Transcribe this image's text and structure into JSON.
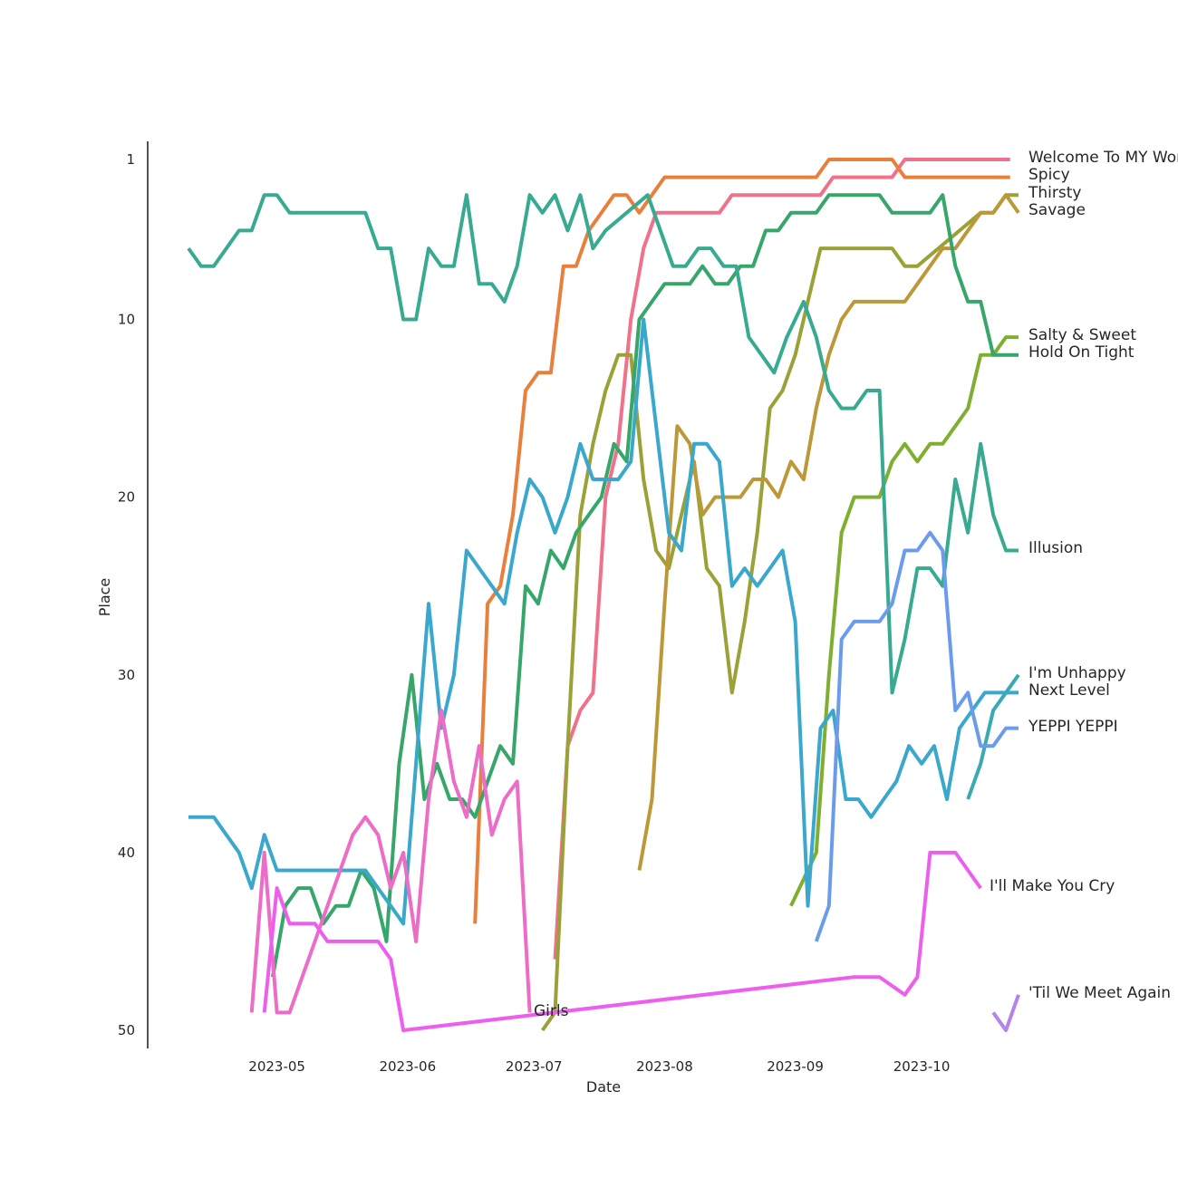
{
  "chart_data": {
    "type": "line",
    "title": "",
    "xlabel": "Date",
    "ylabel": "Place",
    "x_ticks": [
      "2023-05",
      "2023-06",
      "2023-07",
      "2023-08",
      "2023-09",
      "2023-10"
    ],
    "y_ticks": [
      1,
      10,
      20,
      30,
      40,
      50
    ],
    "ylim": [
      51,
      0
    ],
    "xlim": [
      "2023-04-10",
      "2023-10-31"
    ],
    "y_inverted": true,
    "grid": false,
    "legend": "direct labels at line ends",
    "series": [
      {
        "name": "Welcome To MY World",
        "color": "#f0718a",
        "dates": [
          "2023-07-06",
          "2023-07-09",
          "2023-07-12",
          "2023-07-15",
          "2023-07-18",
          "2023-07-21",
          "2023-07-24",
          "2023-07-27",
          "2023-07-30",
          "2023-08-02",
          "2023-08-14",
          "2023-08-17",
          "2023-09-07",
          "2023-09-10",
          "2023-09-24",
          "2023-09-27",
          "2023-10-22"
        ],
        "values": [
          46,
          34,
          32,
          31,
          20,
          17,
          10,
          6,
          4,
          4,
          4,
          3,
          3,
          2,
          2,
          1,
          1
        ]
      },
      {
        "name": "Spicy",
        "color": "#e8803c",
        "dates": [
          "2023-06-17",
          "2023-06-20",
          "2023-06-23",
          "2023-06-26",
          "2023-06-29",
          "2023-07-02",
          "2023-07-05",
          "2023-07-08",
          "2023-07-11",
          "2023-07-14",
          "2023-07-17",
          "2023-07-20",
          "2023-07-23",
          "2023-07-26",
          "2023-07-29",
          "2023-08-01",
          "2023-08-04",
          "2023-08-07",
          "2023-09-06",
          "2023-09-09",
          "2023-09-24",
          "2023-09-27",
          "2023-10-22"
        ],
        "values": [
          44,
          26,
          25,
          21,
          14,
          13,
          13,
          7,
          7,
          5,
          4,
          3,
          3,
          4,
          3,
          2,
          2,
          2,
          2,
          1,
          1,
          2,
          2
        ]
      },
      {
        "name": "Thirsty",
        "color": "#9aa137",
        "dates": [
          "2023-07-03",
          "2023-07-06",
          "2023-07-09",
          "2023-07-12",
          "2023-07-15",
          "2023-07-18",
          "2023-07-21",
          "2023-07-24",
          "2023-07-27",
          "2023-07-30",
          "2023-08-02",
          "2023-08-05",
          "2023-08-08",
          "2023-08-11",
          "2023-08-14",
          "2023-08-17",
          "2023-08-20",
          "2023-08-23",
          "2023-08-26",
          "2023-08-29",
          "2023-09-01",
          "2023-09-04",
          "2023-09-07",
          "2023-09-10",
          "2023-09-24",
          "2023-09-27",
          "2023-09-30",
          "2023-10-15",
          "2023-10-18",
          "2023-10-21",
          "2023-10-24"
        ],
        "values": [
          50,
          49,
          34,
          21,
          17,
          14,
          12,
          12,
          19,
          23,
          24,
          21,
          18,
          24,
          25,
          31,
          27,
          22,
          15,
          14,
          12,
          9,
          6,
          6,
          6,
          7,
          7,
          4,
          4,
          3,
          3
        ]
      },
      {
        "name": "Savage",
        "color": "#bd9838",
        "dates": [
          "2023-07-26",
          "2023-07-29",
          "2023-08-01",
          "2023-08-04",
          "2023-08-07",
          "2023-08-10",
          "2023-08-13",
          "2023-08-16",
          "2023-08-19",
          "2023-08-22",
          "2023-08-25",
          "2023-08-28",
          "2023-08-31",
          "2023-09-03",
          "2023-09-06",
          "2023-09-09",
          "2023-09-12",
          "2023-09-15",
          "2023-09-27",
          "2023-10-06",
          "2023-10-09",
          "2023-10-12",
          "2023-10-15",
          "2023-10-18",
          "2023-10-21",
          "2023-10-24"
        ],
        "values": [
          41,
          37,
          26,
          16,
          17,
          21,
          20,
          20,
          20,
          19,
          19,
          20,
          18,
          19,
          15,
          12,
          10,
          9,
          9,
          6,
          6,
          5,
          4,
          4,
          3,
          4
        ]
      },
      {
        "name": "Salty & Sweet",
        "color": "#7fae30",
        "dates": [
          "2023-08-31",
          "2023-09-06",
          "2023-09-09",
          "2023-09-12",
          "2023-09-15",
          "2023-09-18",
          "2023-09-21",
          "2023-09-24",
          "2023-09-27",
          "2023-09-30",
          "2023-10-03",
          "2023-10-06",
          "2023-10-09",
          "2023-10-12",
          "2023-10-15",
          "2023-10-18",
          "2023-10-21",
          "2023-10-24"
        ],
        "values": [
          43,
          40,
          30,
          22,
          20,
          20,
          20,
          18,
          17,
          18,
          17,
          17,
          16,
          15,
          12,
          12,
          11,
          11
        ]
      },
      {
        "name": "Hold On Tight",
        "color": "#36a66b",
        "dates": [
          "2023-04-30",
          "2023-05-03",
          "2023-05-06",
          "2023-05-09",
          "2023-05-12",
          "2023-05-15",
          "2023-05-18",
          "2023-05-21",
          "2023-05-24",
          "2023-05-27",
          "2023-05-30",
          "2023-06-02",
          "2023-06-05",
          "2023-06-08",
          "2023-06-11",
          "2023-06-14",
          "2023-06-17",
          "2023-06-20",
          "2023-06-23",
          "2023-06-26",
          "2023-06-29",
          "2023-07-02",
          "2023-07-05",
          "2023-07-08",
          "2023-07-11",
          "2023-07-14",
          "2023-07-17",
          "2023-07-20",
          "2023-07-23",
          "2023-07-26",
          "2023-07-29",
          "2023-08-01",
          "2023-08-04",
          "2023-08-07",
          "2023-08-10",
          "2023-08-13",
          "2023-08-16",
          "2023-08-19",
          "2023-08-22",
          "2023-08-25",
          "2023-08-28",
          "2023-08-31",
          "2023-09-03",
          "2023-09-06",
          "2023-09-09",
          "2023-09-12",
          "2023-09-15",
          "2023-09-18",
          "2023-09-21",
          "2023-09-24",
          "2023-09-27",
          "2023-09-30",
          "2023-10-03",
          "2023-10-06",
          "2023-10-09",
          "2023-10-12",
          "2023-10-15",
          "2023-10-18",
          "2023-10-21",
          "2023-10-24"
        ],
        "values": [
          47,
          43,
          42,
          42,
          44,
          43,
          43,
          41,
          42,
          45,
          35,
          30,
          37,
          35,
          37,
          37,
          38,
          36,
          34,
          35,
          25,
          26,
          23,
          24,
          22,
          21,
          20,
          17,
          18,
          10,
          9,
          8,
          8,
          8,
          7,
          8,
          8,
          7,
          7,
          5,
          5,
          4,
          4,
          4,
          3,
          3,
          3,
          3,
          3,
          4,
          4,
          4,
          4,
          3,
          7,
          9,
          9,
          12,
          12,
          12
        ]
      },
      {
        "name": "Illusion",
        "color": "#38aa92",
        "dates": [
          "2023-04-10",
          "2023-04-13",
          "2023-04-16",
          "2023-04-19",
          "2023-04-22",
          "2023-04-25",
          "2023-04-28",
          "2023-05-01",
          "2023-05-04",
          "2023-05-07",
          "2023-05-10",
          "2023-05-13",
          "2023-05-16",
          "2023-05-19",
          "2023-05-22",
          "2023-05-25",
          "2023-05-28",
          "2023-05-31",
          "2023-06-03",
          "2023-06-06",
          "2023-06-09",
          "2023-06-12",
          "2023-06-15",
          "2023-06-18",
          "2023-06-21",
          "2023-06-24",
          "2023-06-27",
          "2023-06-30",
          "2023-07-03",
          "2023-07-06",
          "2023-07-09",
          "2023-07-12",
          "2023-07-15",
          "2023-07-18",
          "2023-07-28",
          "2023-07-31",
          "2023-08-03",
          "2023-08-06",
          "2023-08-09",
          "2023-08-12",
          "2023-08-15",
          "2023-08-18",
          "2023-08-21",
          "2023-08-24",
          "2023-08-27",
          "2023-08-30",
          "2023-09-03",
          "2023-09-06",
          "2023-09-09",
          "2023-09-12",
          "2023-09-15",
          "2023-09-18",
          "2023-09-21",
          "2023-09-24",
          "2023-09-27",
          "2023-09-30",
          "2023-10-03",
          "2023-10-06",
          "2023-10-09",
          "2023-10-12",
          "2023-10-15",
          "2023-10-18",
          "2023-10-21",
          "2023-10-24"
        ],
        "values": [
          6,
          7,
          7,
          6,
          5,
          5,
          3,
          3,
          4,
          4,
          4,
          4,
          4,
          4,
          4,
          6,
          6,
          10,
          10,
          6,
          7,
          7,
          3,
          8,
          8,
          9,
          7,
          3,
          4,
          3,
          5,
          3,
          6,
          5,
          3,
          5,
          7,
          7,
          6,
          6,
          7,
          7,
          11,
          12,
          13,
          11,
          9,
          11,
          14,
          15,
          15,
          14,
          14,
          31,
          28,
          24,
          24,
          25,
          19,
          22,
          17,
          21,
          23,
          23
        ]
      },
      {
        "name": "I'm Unhappy",
        "color": "#38aab0",
        "dates": [
          "2023-10-12",
          "2023-10-15",
          "2023-10-18",
          "2023-10-21",
          "2023-10-24"
        ],
        "values": [
          37,
          35,
          32,
          31,
          30
        ]
      },
      {
        "name": "Next Level",
        "color": "#3aa8cc",
        "dates": [
          "2023-04-10",
          "2023-04-13",
          "2023-04-16",
          "2023-04-19",
          "2023-04-22",
          "2023-04-25",
          "2023-04-28",
          "2023-05-01",
          "2023-05-04",
          "2023-05-07",
          "2023-05-10",
          "2023-05-13",
          "2023-05-16",
          "2023-05-19",
          "2023-05-22",
          "2023-05-25",
          "2023-05-28",
          "2023-05-31",
          "2023-06-03",
          "2023-06-06",
          "2023-06-09",
          "2023-06-12",
          "2023-06-15",
          "2023-06-18",
          "2023-06-21",
          "2023-06-24",
          "2023-06-27",
          "2023-06-30",
          "2023-07-03",
          "2023-07-06",
          "2023-07-09",
          "2023-07-12",
          "2023-07-15",
          "2023-07-18",
          "2023-07-21",
          "2023-07-24",
          "2023-07-27",
          "2023-07-30",
          "2023-08-02",
          "2023-08-05",
          "2023-08-08",
          "2023-08-11",
          "2023-08-14",
          "2023-08-17",
          "2023-08-20",
          "2023-08-23",
          "2023-08-26",
          "2023-08-29",
          "2023-09-01",
          "2023-09-04",
          "2023-09-07",
          "2023-09-10",
          "2023-09-13",
          "2023-09-16",
          "2023-09-19",
          "2023-09-22",
          "2023-09-25",
          "2023-09-28",
          "2023-10-01",
          "2023-10-04",
          "2023-10-07",
          "2023-10-10",
          "2023-10-13",
          "2023-10-16",
          "2023-10-19",
          "2023-10-22",
          "2023-10-24"
        ],
        "values": [
          38,
          38,
          38,
          39,
          40,
          42,
          39,
          41,
          41,
          41,
          41,
          41,
          41,
          41,
          41,
          42,
          43,
          44,
          35,
          26,
          33,
          30,
          23,
          24,
          25,
          26,
          22,
          19,
          20,
          22,
          20,
          17,
          19,
          19,
          19,
          18,
          10,
          16,
          22,
          23,
          17,
          17,
          18,
          25,
          24,
          25,
          24,
          23,
          27,
          43,
          33,
          32,
          37,
          37,
          38,
          37,
          36,
          34,
          35,
          34,
          37,
          33,
          32,
          31,
          31,
          31,
          31
        ]
      },
      {
        "name": "YEPPI YEPPI",
        "color": "#6a9ceb",
        "dates": [
          "2023-09-06",
          "2023-09-09",
          "2023-09-12",
          "2023-09-15",
          "2023-09-18",
          "2023-09-21",
          "2023-09-24",
          "2023-09-27",
          "2023-09-30",
          "2023-10-03",
          "2023-10-06",
          "2023-10-09",
          "2023-10-12",
          "2023-10-15",
          "2023-10-18",
          "2023-10-21",
          "2023-10-24"
        ],
        "values": [
          45,
          43,
          28,
          27,
          27,
          27,
          26,
          23,
          23,
          22,
          23,
          32,
          31,
          34,
          34,
          33,
          33
        ]
      },
      {
        "name": "Girls",
        "color": "#ec6cc6",
        "dates": [
          "2023-04-25",
          "2023-04-28",
          "2023-05-01",
          "2023-05-04",
          "2023-05-07",
          "2023-05-10",
          "2023-05-13",
          "2023-05-16",
          "2023-05-19",
          "2023-05-22",
          "2023-05-25",
          "2023-05-28",
          "2023-05-31",
          "2023-06-03",
          "2023-06-06",
          "2023-06-09",
          "2023-06-12",
          "2023-06-15",
          "2023-06-18",
          "2023-06-21",
          "2023-06-24",
          "2023-06-27",
          "2023-06-30"
        ],
        "values": [
          49,
          40,
          49,
          49,
          47,
          45,
          43,
          41,
          39,
          38,
          39,
          42,
          40,
          45,
          37,
          32,
          36,
          38,
          34,
          39,
          37,
          36,
          49
        ]
      },
      {
        "name": "I'll Make You Cry",
        "color": "#ee5eee",
        "dates": [
          "2023-04-28",
          "2023-05-01",
          "2023-05-04",
          "2023-05-07",
          "2023-05-10",
          "2023-05-13",
          "2023-05-16",
          "2023-05-19",
          "2023-05-22",
          "2023-05-25",
          "2023-05-28",
          "2023-05-31",
          "2023-09-15",
          "2023-09-21",
          "2023-09-27",
          "2023-09-30",
          "2023-10-03",
          "2023-10-06",
          "2023-10-09",
          "2023-10-15"
        ],
        "values": [
          49,
          42,
          44,
          44,
          44,
          45,
          45,
          45,
          45,
          45,
          46,
          50,
          47,
          47,
          48,
          47,
          40,
          40,
          40,
          42
        ]
      },
      {
        "name": "'Til We Meet Again",
        "color": "#b284ec",
        "dates": [
          "2023-10-18",
          "2023-10-21",
          "2023-10-24"
        ],
        "values": [
          49,
          50,
          48
        ]
      }
    ]
  }
}
